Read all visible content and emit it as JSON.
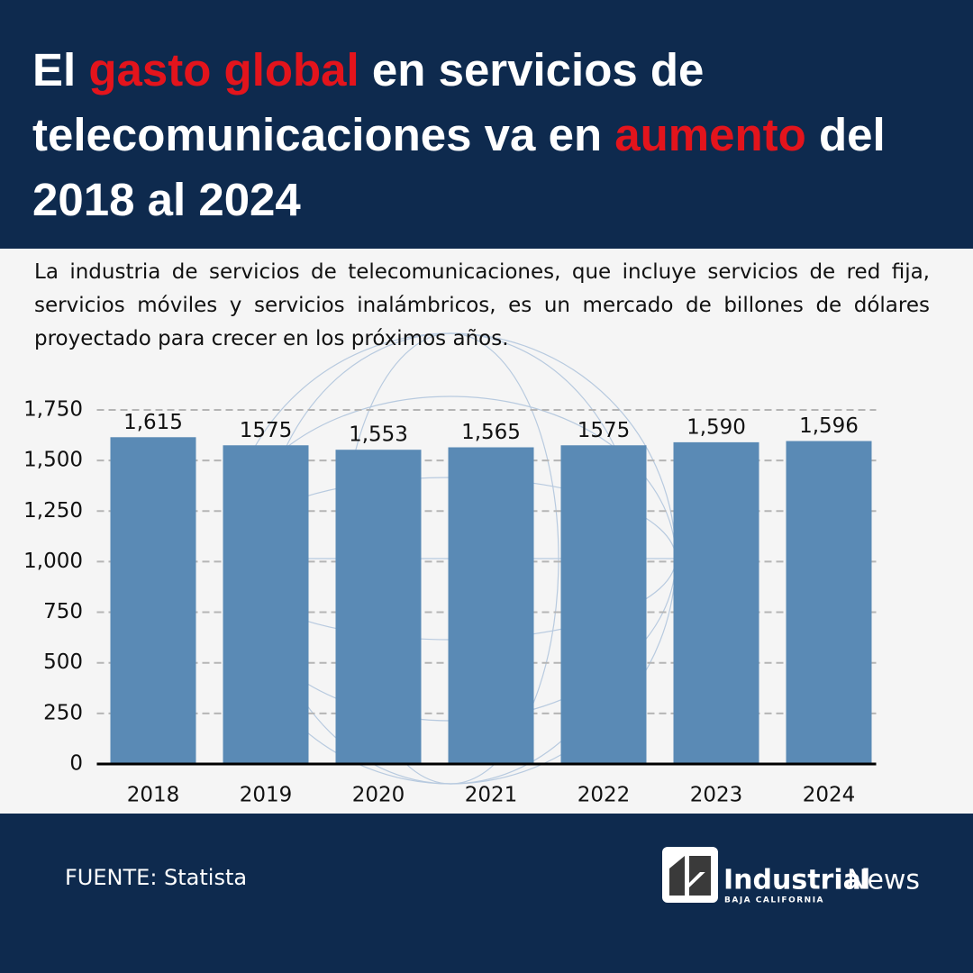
{
  "chart_data": {
    "type": "bar",
    "title": {
      "parts": [
        "El ",
        "gasto global",
        " en servicios de telecomunicaciones va en ",
        "aumento",
        " del 2018 al 2024"
      ],
      "highlight": [
        1,
        3
      ],
      "highlight_color": "#e3141c"
    },
    "subtitle": "La industria de servicios de telecomunicaciones, que incluye servicios de red fija, servicios móviles y servicios inalámbricos, es un mercado de billones de dólares proyectado para crecer en los próximos años.",
    "categories": [
      "2018",
      "2019",
      "2020",
      "2021",
      "2022",
      "2023",
      "2024"
    ],
    "values": [
      1615,
      1575,
      1553,
      1565,
      1575,
      1590,
      1596
    ],
    "value_labels": [
      "1,615",
      "1575",
      "1,553",
      "1,565",
      "1575",
      "1,590",
      "1,596"
    ],
    "color": "#5a8ab5",
    "ylim": [
      0,
      1850
    ],
    "yticks": [
      0,
      250,
      500,
      750,
      {
        "value": 1000,
        "label": "1,000"
      },
      {
        "value": 1250,
        "label": "1,250"
      },
      {
        "value": 1500,
        "label": "1,500"
      },
      {
        "value": 1750,
        "label": "1,750"
      }
    ],
    "grid": true,
    "source": "FUENTE: Statista"
  },
  "logo": {
    "name": "Industrial",
    "name2": "News",
    "region": "BAJA CALIFORNIA"
  }
}
